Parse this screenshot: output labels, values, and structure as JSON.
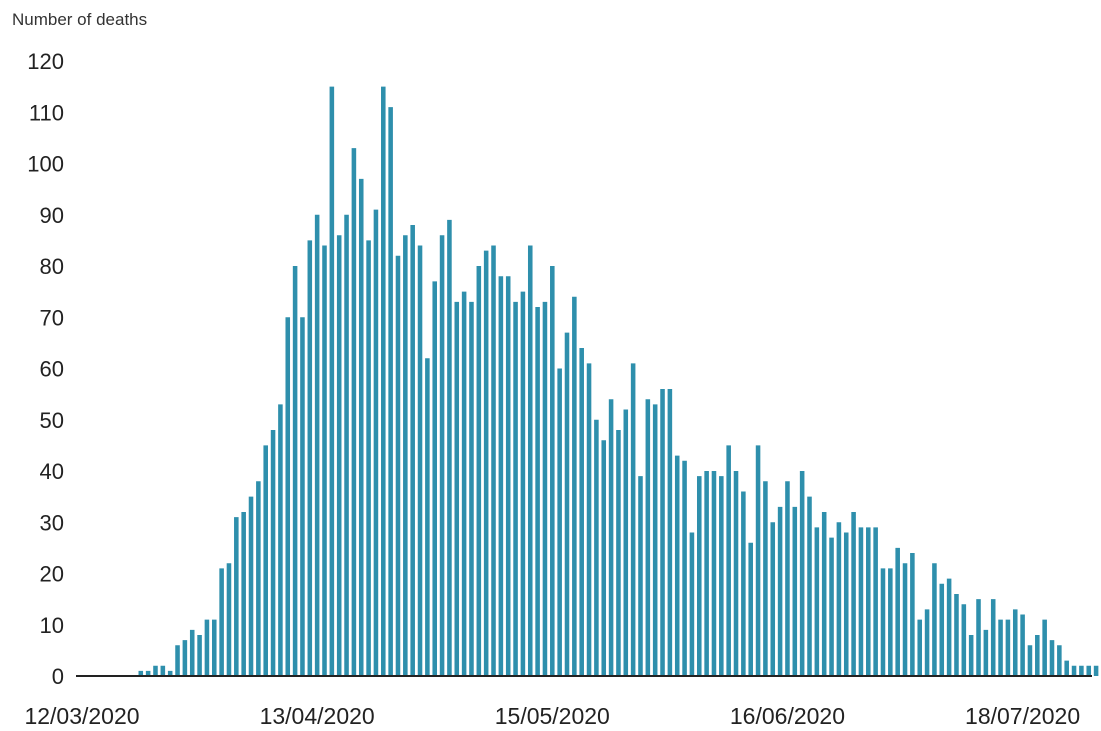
{
  "chart_data": {
    "type": "bar",
    "title": "",
    "xlabel": "",
    "ylabel": "Number of deaths",
    "ylim": [
      0,
      120
    ],
    "yticks": [
      0,
      10,
      20,
      30,
      40,
      50,
      60,
      70,
      80,
      90,
      100,
      110,
      120
    ],
    "x_tick_labels": [
      "12/03/2020",
      "13/04/2020",
      "15/05/2020",
      "16/06/2020",
      "18/07/2020"
    ],
    "x_start": "12/03/2020",
    "x_end": "22/07/2020",
    "grid": false,
    "bar_color": "#2e8fac",
    "series": [
      {
        "values": [
          0,
          0,
          0,
          0,
          0,
          0,
          0,
          0,
          1,
          1,
          2,
          2,
          1,
          6,
          7,
          9,
          8,
          11,
          11,
          21,
          22,
          31,
          32,
          35,
          38,
          45,
          48,
          53,
          70,
          80,
          70,
          85,
          90,
          84,
          115,
          86,
          90,
          103,
          97,
          85,
          91,
          115,
          111,
          82,
          86,
          88,
          84,
          62,
          77,
          86,
          89,
          73,
          75,
          73,
          80,
          83,
          84,
          78,
          78,
          73,
          75,
          84,
          72,
          73,
          80,
          60,
          67,
          74,
          64,
          61,
          50,
          46,
          54,
          48,
          52,
          61,
          39,
          54,
          53,
          56,
          56,
          43,
          42,
          28,
          39,
          40,
          40,
          39,
          45,
          40,
          36,
          26,
          45,
          38,
          30,
          33,
          38,
          33,
          40,
          35,
          29,
          32,
          27,
          30,
          28,
          32,
          29,
          29,
          29,
          21,
          21,
          25,
          22,
          24,
          11,
          13,
          22,
          18,
          19,
          16,
          14,
          8,
          15,
          9,
          15,
          11,
          11,
          13,
          12,
          6,
          8,
          11,
          7,
          6,
          3,
          2,
          2,
          2,
          2,
          1,
          0
        ]
      }
    ]
  }
}
